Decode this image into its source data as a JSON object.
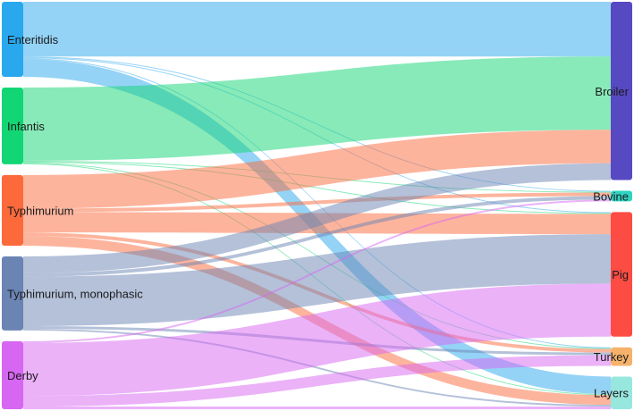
{
  "chart_data": {
    "type": "sankey",
    "source_nodes": [
      {
        "id": "enteritidis",
        "label": "Enteritidis",
        "color": "#29a8ee"
      },
      {
        "id": "infantis",
        "label": "Infantis",
        "color": "#12d673"
      },
      {
        "id": "typhimurium",
        "label": "Typhimurium",
        "color": "#fc6a3c"
      },
      {
        "id": "typhi_mono",
        "label": "Typhimurium, monophasic",
        "color": "#6a84b4"
      },
      {
        "id": "derby",
        "label": "Derby",
        "color": "#d766f2"
      }
    ],
    "target_nodes": [
      {
        "id": "broiler",
        "label": "Broiler",
        "color": "#5749c2"
      },
      {
        "id": "bovine",
        "label": "Bovine",
        "color": "#2fd3c2"
      },
      {
        "id": "pig",
        "label": "Pig",
        "color": "#fc4c43"
      },
      {
        "id": "turkey",
        "label": "Turkey",
        "color": "#f6b26b"
      },
      {
        "id": "layers",
        "label": "Layers",
        "color": "#98e7df"
      }
    ],
    "links": [
      {
        "source": "enteritidis",
        "target": "broiler",
        "value": 62
      },
      {
        "source": "enteritidis",
        "target": "bovine",
        "value": 1
      },
      {
        "source": "enteritidis",
        "target": "pig",
        "value": 1
      },
      {
        "source": "enteritidis",
        "target": "turkey",
        "value": 1
      },
      {
        "source": "enteritidis",
        "target": "layers",
        "value": 20
      },
      {
        "source": "infantis",
        "target": "broiler",
        "value": 83
      },
      {
        "source": "infantis",
        "target": "bovine",
        "value": 1
      },
      {
        "source": "infantis",
        "target": "pig",
        "value": 1
      },
      {
        "source": "infantis",
        "target": "turkey",
        "value": 1
      },
      {
        "source": "infantis",
        "target": "layers",
        "value": 1
      },
      {
        "source": "typhimurium",
        "target": "broiler",
        "value": 38
      },
      {
        "source": "typhimurium",
        "target": "bovine",
        "value": 4
      },
      {
        "source": "typhimurium",
        "target": "pig",
        "value": 23
      },
      {
        "source": "typhimurium",
        "target": "turkey",
        "value": 4
      },
      {
        "source": "typhimurium",
        "target": "layers",
        "value": 11
      },
      {
        "source": "typhi_mono",
        "target": "broiler",
        "value": 19
      },
      {
        "source": "typhi_mono",
        "target": "bovine",
        "value": 4
      },
      {
        "source": "typhi_mono",
        "target": "pig",
        "value": 56
      },
      {
        "source": "typhi_mono",
        "target": "turkey",
        "value": 3
      },
      {
        "source": "typhi_mono",
        "target": "layers",
        "value": 2
      },
      {
        "source": "derby",
        "target": "bovine",
        "value": 2
      },
      {
        "source": "derby",
        "target": "pig",
        "value": 60
      },
      {
        "source": "derby",
        "target": "turkey",
        "value": 12
      },
      {
        "source": "derby",
        "target": "layers",
        "value": 3
      }
    ]
  }
}
